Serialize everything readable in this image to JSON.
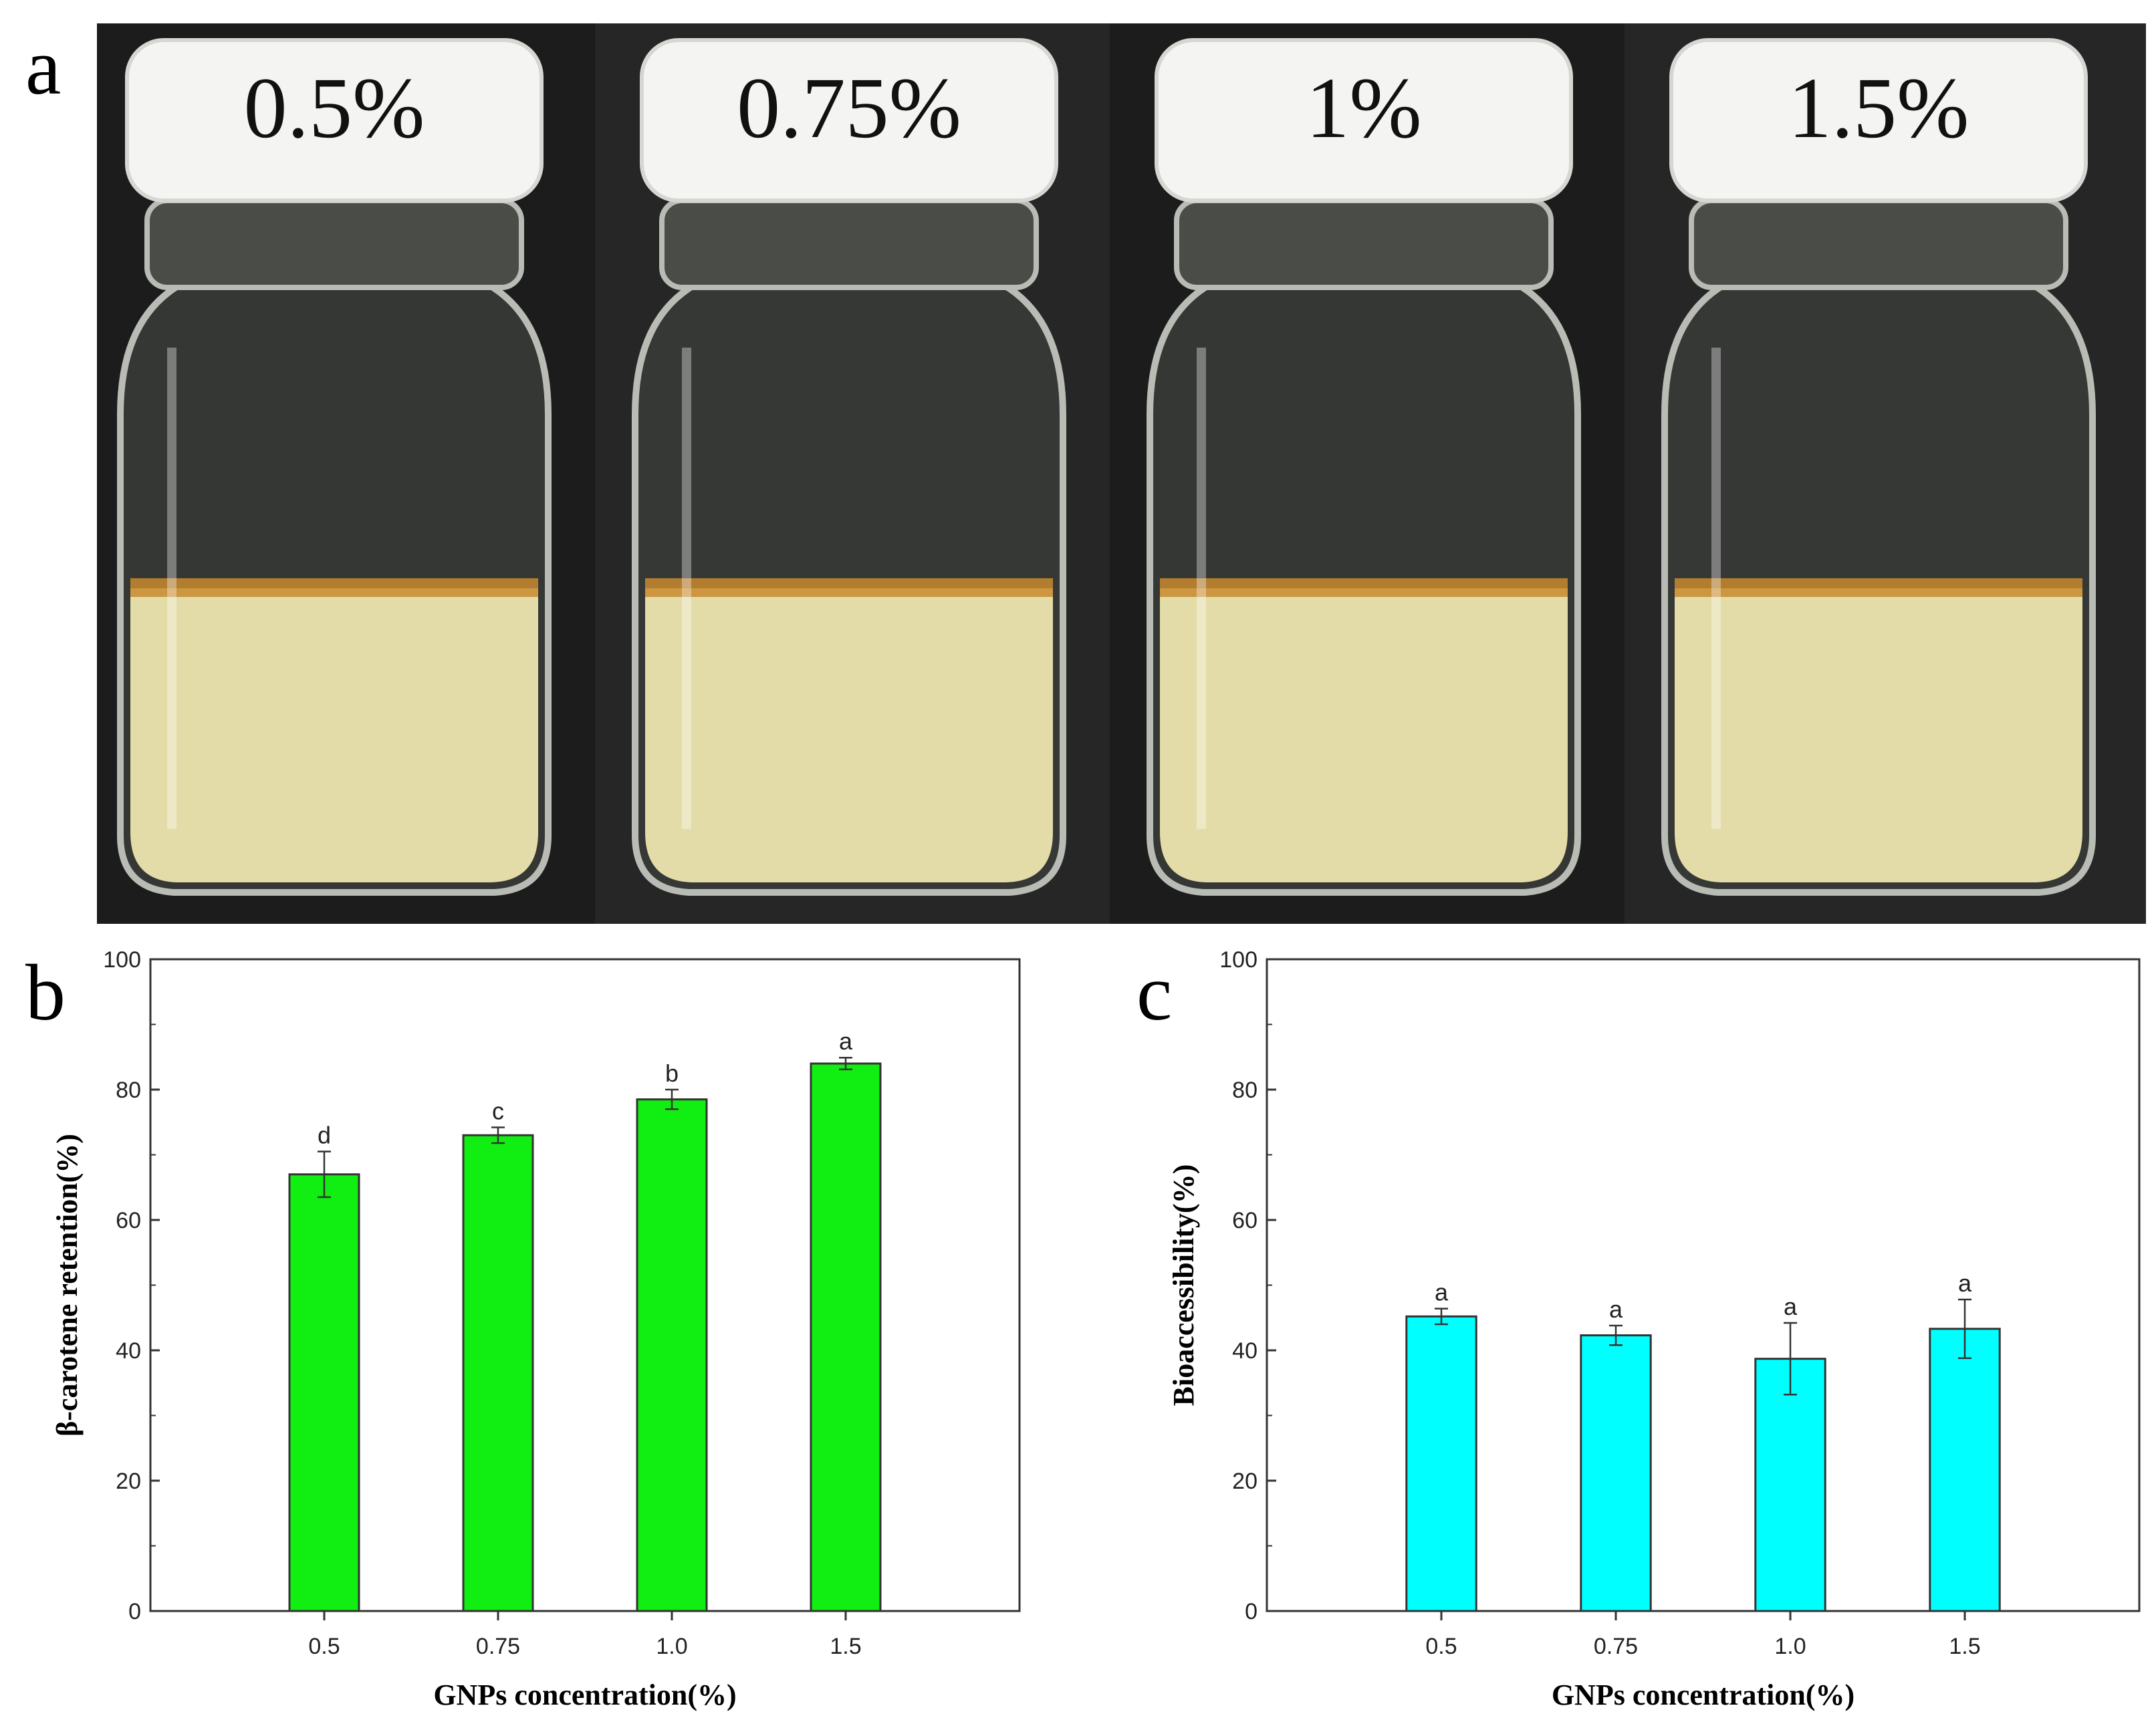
{
  "panels": {
    "a": "a",
    "b": "b",
    "c": "c"
  },
  "photo": {
    "labels": [
      "0.5%",
      "0.75%",
      "1%",
      "1.5%"
    ],
    "colors": {
      "background": "#1c1c1c",
      "cap": "#f4f4f2",
      "liquid": "#e3dca8",
      "oil_layer": "#c98a2e",
      "glass": "#b9bcb5"
    }
  },
  "chart_data": [
    {
      "type": "bar",
      "panel": "b",
      "categories": [
        "0.5",
        "0.75",
        "1.0",
        "1.5"
      ],
      "values": [
        67,
        73,
        78.5,
        84
      ],
      "errors": [
        3.5,
        1.2,
        1.5,
        0.9
      ],
      "significance": [
        "d",
        "c",
        "b",
        "a"
      ],
      "xlabel": "GNPs concentration(%)",
      "ylabel": "β-carotene retention(%)",
      "ylim": [
        0,
        100
      ],
      "yticks": [
        "0",
        "20",
        "40",
        "60",
        "80",
        "100"
      ],
      "bar_color": "#11ee11",
      "grid": false
    },
    {
      "type": "bar",
      "panel": "c",
      "categories": [
        "0.5",
        "0.75",
        "1.0",
        "1.5"
      ],
      "values": [
        45.2,
        42.3,
        38.7,
        43.3
      ],
      "errors": [
        1.2,
        1.5,
        5.5,
        4.5
      ],
      "significance": [
        "a",
        "a",
        "a",
        "a"
      ],
      "xlabel": "GNPs concentration(%)",
      "ylabel": "Bioaccessibility(%)",
      "ylim": [
        0,
        100
      ],
      "yticks": [
        "0",
        "20",
        "40",
        "60",
        "80",
        "100"
      ],
      "bar_color": "#00ffff",
      "grid": false
    }
  ]
}
